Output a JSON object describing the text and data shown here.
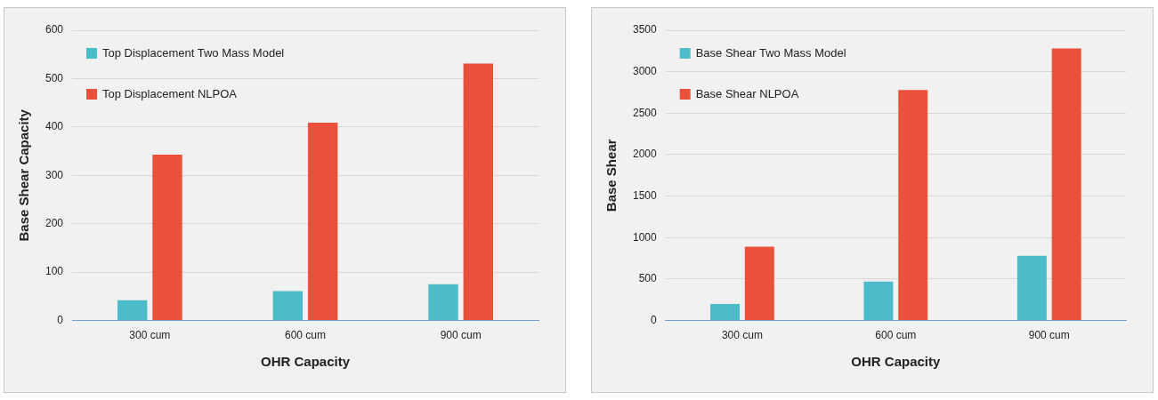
{
  "chart_data": [
    {
      "type": "bar",
      "xlabel": "OHR Capacity",
      "ylabel": "Base Shear Capacity",
      "categories": [
        "300 cum",
        "600 cum",
        "900 cum"
      ],
      "series": [
        {
          "name": "Top Displacement Two Mass Model",
          "color": "#4cbcc8",
          "values": [
            42,
            61,
            75
          ]
        },
        {
          "name": "Top Displacement NLPOA",
          "color": "#e9513a",
          "values": [
            343,
            409,
            531
          ]
        }
      ],
      "ylim": [
        0,
        600
      ],
      "yticks": [
        0,
        100,
        200,
        300,
        400,
        500,
        600
      ],
      "grid": "y",
      "legend": "top left"
    },
    {
      "type": "bar",
      "xlabel": "OHR Capacity",
      "ylabel": "Base Shear",
      "categories": [
        "300 cum",
        "600 cum",
        "900 cum"
      ],
      "series": [
        {
          "name": "Base Shear Two Mass Model",
          "color": "#4cbcc8",
          "values": [
            200,
            470,
            780
          ]
        },
        {
          "name": "Base Shear NLPOA",
          "color": "#e9513a",
          "values": [
            890,
            2780,
            3280
          ]
        }
      ],
      "ylim": [
        0,
        3500
      ],
      "yticks": [
        0,
        500,
        1000,
        1500,
        2000,
        2500,
        3000,
        3500
      ],
      "grid": "y",
      "legend": "top left"
    }
  ]
}
